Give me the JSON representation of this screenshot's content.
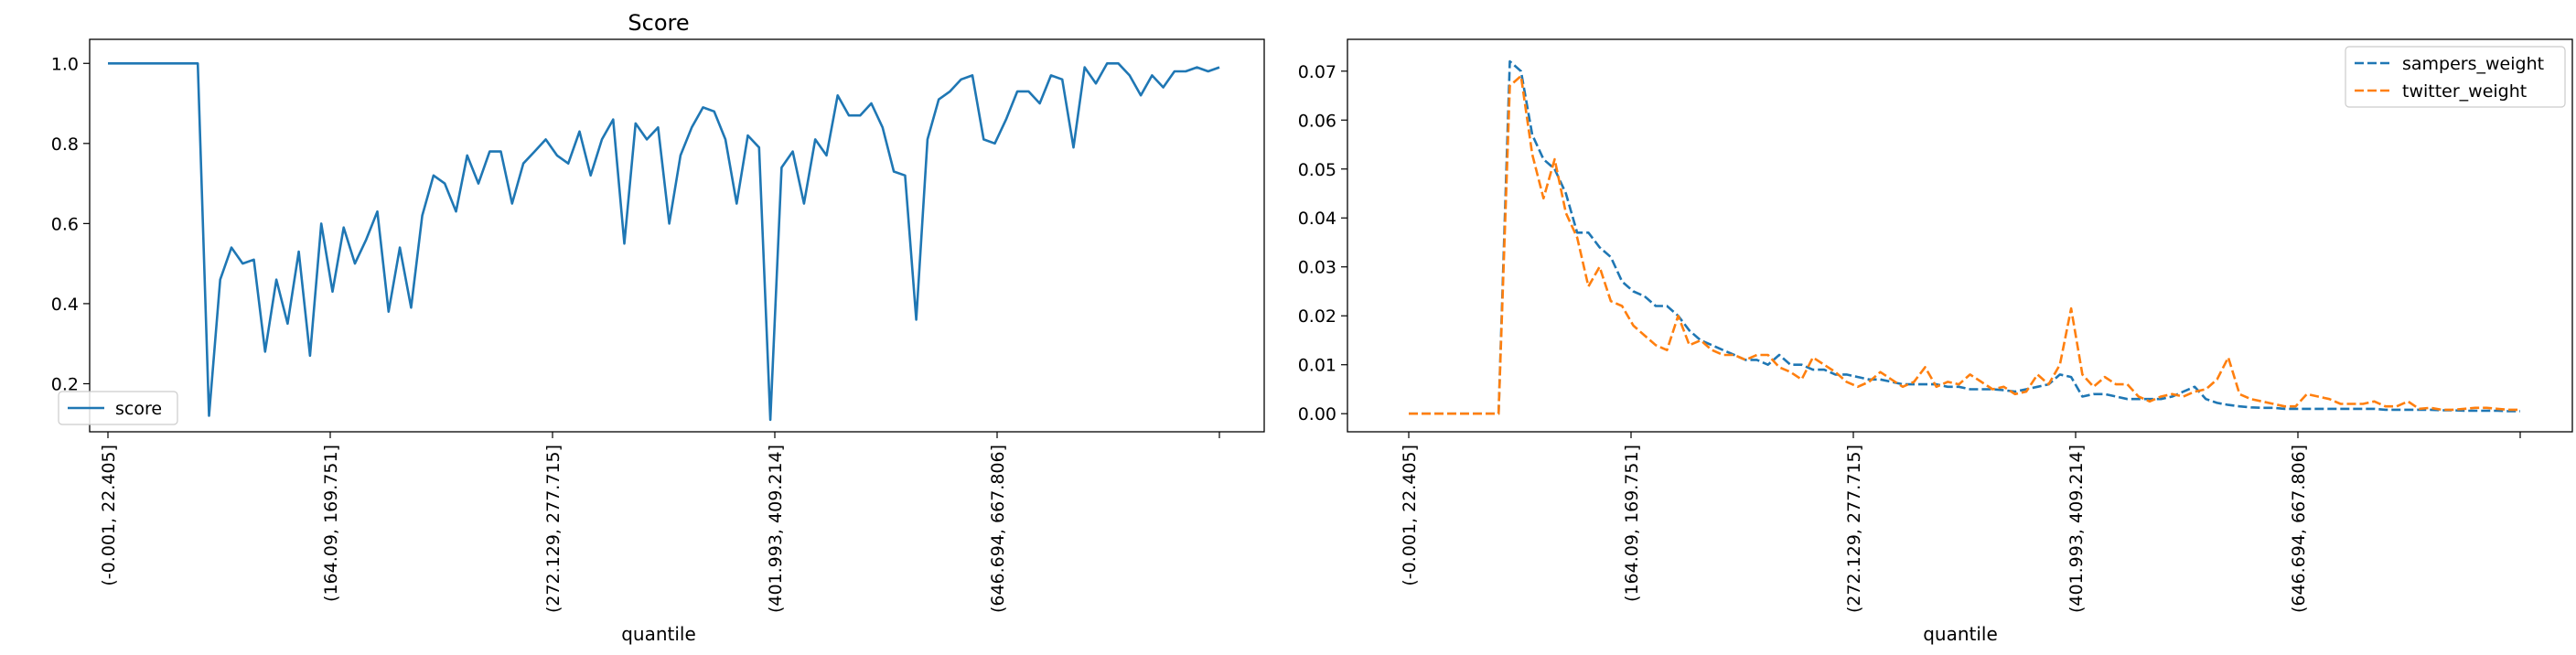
{
  "chart_data": [
    {
      "type": "line",
      "title": "Score",
      "xlabel": "quantile",
      "ylabel": "",
      "ylim": [
        0.08,
        1.06
      ],
      "x_tick_labels": [
        "(-0.001, 22.405]",
        "(164.09, 169.751]",
        "(272.129, 277.715]",
        "(401.993, 409.214]",
        "(646.694, 667.806]",
        ""
      ],
      "x_tick_positions": [
        0,
        20,
        40,
        60,
        80,
        100
      ],
      "y_ticks": [
        0.2,
        0.4,
        0.6,
        0.8,
        1.0
      ],
      "y_tick_labels": [
        "0.2",
        "0.4",
        "0.6",
        "0.8",
        "1.0"
      ],
      "legend_position": "bottom-left",
      "series": [
        {
          "name": "score",
          "color": "#1f77b4",
          "style": "solid",
          "values": [
            1.0,
            1.0,
            1.0,
            1.0,
            1.0,
            1.0,
            1.0,
            1.0,
            1.0,
            0.12,
            0.46,
            0.54,
            0.5,
            0.51,
            0.28,
            0.46,
            0.35,
            0.53,
            0.27,
            0.6,
            0.43,
            0.59,
            0.5,
            0.56,
            0.63,
            0.38,
            0.54,
            0.39,
            0.62,
            0.72,
            0.7,
            0.63,
            0.77,
            0.7,
            0.78,
            0.78,
            0.65,
            0.75,
            0.78,
            0.81,
            0.77,
            0.75,
            0.83,
            0.72,
            0.81,
            0.86,
            0.55,
            0.85,
            0.81,
            0.84,
            0.6,
            0.77,
            0.84,
            0.89,
            0.88,
            0.81,
            0.65,
            0.82,
            0.79,
            0.11,
            0.74,
            0.78,
            0.65,
            0.81,
            0.77,
            0.92,
            0.87,
            0.87,
            0.9,
            0.84,
            0.73,
            0.72,
            0.36,
            0.81,
            0.91,
            0.93,
            0.96,
            0.97,
            0.81,
            0.8,
            0.86,
            0.93,
            0.93,
            0.9,
            0.97,
            0.96,
            0.79,
            0.99,
            0.95,
            1.0,
            1.0,
            0.97,
            0.92,
            0.97,
            0.94,
            0.98,
            0.98,
            0.99,
            0.98,
            0.99
          ]
        }
      ]
    },
    {
      "type": "line",
      "title": "",
      "xlabel": "quantile",
      "ylabel": "",
      "ylim": [
        -0.0037,
        0.0765
      ],
      "x_tick_labels": [
        "(-0.001, 22.405]",
        "(164.09, 169.751]",
        "(272.129, 277.715]",
        "(401.993, 409.214]",
        "(646.694, 667.806]",
        ""
      ],
      "x_tick_positions": [
        0,
        20,
        40,
        60,
        80,
        100
      ],
      "y_ticks": [
        0.0,
        0.01,
        0.02,
        0.03,
        0.04,
        0.05,
        0.06,
        0.07
      ],
      "y_tick_labels": [
        "0.00",
        "0.01",
        "0.02",
        "0.03",
        "0.04",
        "0.05",
        "0.06",
        "0.07"
      ],
      "legend_position": "top-right",
      "series": [
        {
          "name": "sampers_weight",
          "color": "#1f77b4",
          "style": "dashed",
          "values": [
            0,
            0,
            0,
            0,
            0,
            0,
            0,
            0,
            0,
            0.072,
            0.07,
            0.057,
            0.052,
            0.05,
            0.045,
            0.037,
            0.037,
            0.034,
            0.032,
            0.027,
            0.025,
            0.024,
            0.022,
            0.022,
            0.02,
            0.017,
            0.015,
            0.014,
            0.013,
            0.012,
            0.011,
            0.011,
            0.01,
            0.012,
            0.01,
            0.01,
            0.009,
            0.009,
            0.008,
            0.008,
            0.0075,
            0.007,
            0.007,
            0.0065,
            0.006,
            0.006,
            0.006,
            0.006,
            0.0055,
            0.0055,
            0.005,
            0.005,
            0.005,
            0.0048,
            0.0045,
            0.005,
            0.0055,
            0.006,
            0.008,
            0.0075,
            0.0035,
            0.004,
            0.004,
            0.0035,
            0.003,
            0.003,
            0.003,
            0.003,
            0.0035,
            0.0045,
            0.0055,
            0.003,
            0.0022,
            0.0018,
            0.0015,
            0.0013,
            0.0012,
            0.0012,
            0.001,
            0.001,
            0.001,
            0.001,
            0.001,
            0.001,
            0.001,
            0.001,
            0.001,
            0.0008,
            0.0008,
            0.0008,
            0.0008,
            0.0008,
            0.0007,
            0.0007,
            0.0006,
            0.0006,
            0.0006,
            0.0006,
            0.0005,
            0.0005
          ]
        },
        {
          "name": "twitter_weight",
          "color": "#ff7f0e",
          "style": "dashed",
          "values": [
            0,
            0,
            0,
            0,
            0,
            0,
            0,
            0,
            0,
            0.067,
            0.069,
            0.053,
            0.044,
            0.052,
            0.041,
            0.036,
            0.026,
            0.03,
            0.023,
            0.022,
            0.018,
            0.016,
            0.014,
            0.013,
            0.02,
            0.014,
            0.015,
            0.013,
            0.012,
            0.012,
            0.011,
            0.012,
            0.012,
            0.0095,
            0.0085,
            0.007,
            0.0115,
            0.01,
            0.0085,
            0.0065,
            0.0055,
            0.0065,
            0.0085,
            0.007,
            0.0055,
            0.0065,
            0.0095,
            0.0055,
            0.0065,
            0.006,
            0.008,
            0.0065,
            0.005,
            0.0055,
            0.004,
            0.0045,
            0.008,
            0.006,
            0.01,
            0.0215,
            0.008,
            0.0055,
            0.0075,
            0.006,
            0.006,
            0.0035,
            0.0025,
            0.0035,
            0.004,
            0.0035,
            0.0045,
            0.005,
            0.007,
            0.0115,
            0.004,
            0.003,
            0.0025,
            0.002,
            0.0015,
            0.0015,
            0.004,
            0.0035,
            0.003,
            0.002,
            0.002,
            0.002,
            0.0025,
            0.0015,
            0.0015,
            0.0025,
            0.001,
            0.0012,
            0.0008,
            0.0008,
            0.001,
            0.0012,
            0.0012,
            0.001,
            0.0008,
            0.0008
          ]
        }
      ]
    }
  ]
}
